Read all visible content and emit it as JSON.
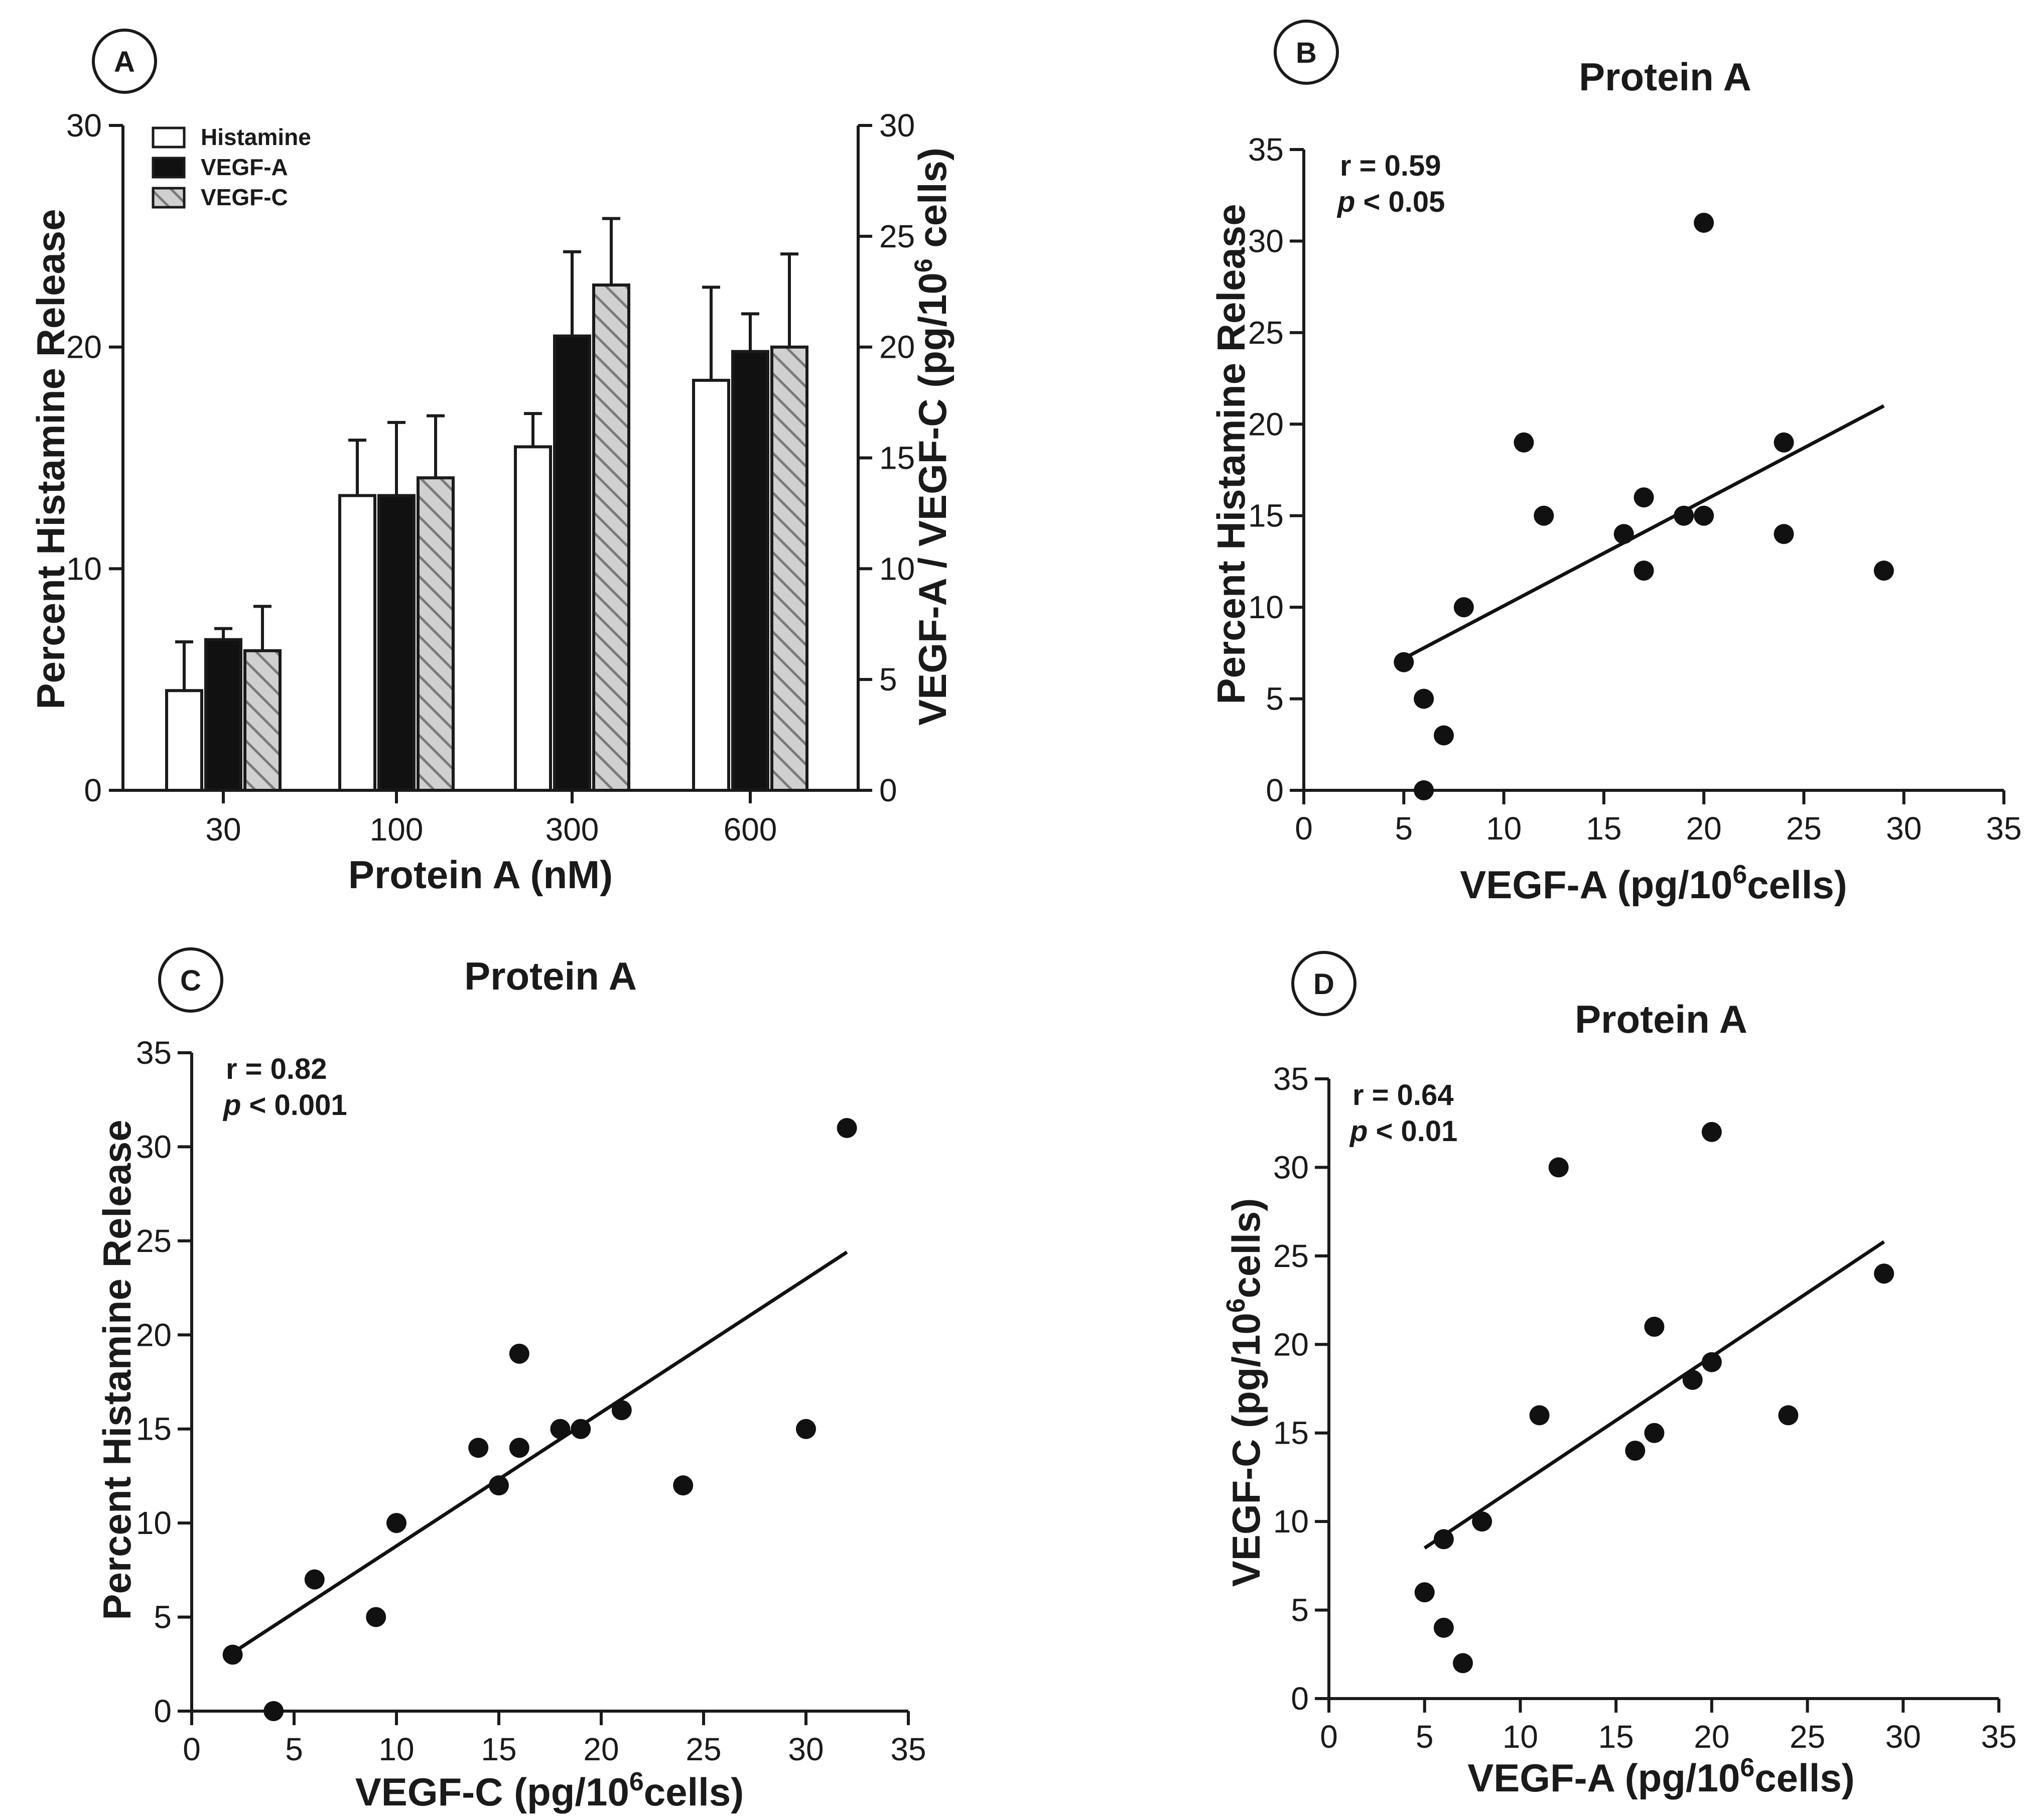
{
  "chart_data": [
    {
      "panel": "A",
      "type": "bar",
      "xlabel": "Protein A (nM)",
      "ylabel": "Percent  Histamine  Release",
      "ylabel_right": "VEGF-A / VEGF-C (pg/10",
      "ylabel_right_sup": "6",
      "ylabel_right_tail": " cells)",
      "ylim": [
        0,
        30
      ],
      "yticks": [
        0,
        10,
        20,
        30
      ],
      "ylim_right": [
        0,
        30
      ],
      "yticks_right": [
        0,
        5,
        10,
        15,
        20,
        25,
        30
      ],
      "categories": [
        "30",
        "100",
        "300",
        "600"
      ],
      "series": [
        {
          "name": "Histamine",
          "fill": "white",
          "values": [
            4.5,
            13.3,
            15.5,
            18.5
          ],
          "errors": [
            2.2,
            2.5,
            1.5,
            4.2
          ]
        },
        {
          "name": "VEGF-A",
          "fill": "black",
          "values": [
            6.8,
            13.3,
            20.5,
            19.8
          ],
          "errors": [
            0.5,
            3.3,
            3.8,
            1.7
          ]
        },
        {
          "name": "VEGF-C",
          "fill": "hatched",
          "values": [
            6.3,
            14.1,
            22.8,
            20.0
          ],
          "errors": [
            2.0,
            2.8,
            3.0,
            4.2
          ]
        }
      ]
    },
    {
      "panel": "B",
      "type": "scatter",
      "title": "Protein A",
      "xlabel": "VEGF-A (pg/10",
      "xlabel_sup": "6",
      "xlabel_tail": "cells)",
      "ylabel": "Percent Histamine Release",
      "xlim": [
        0,
        35
      ],
      "ylim": [
        0,
        35
      ],
      "xticks": [
        0,
        5,
        10,
        15,
        20,
        25,
        30,
        35
      ],
      "yticks": [
        0,
        5,
        10,
        15,
        20,
        25,
        30,
        35
      ],
      "r_text": "r = 0.59",
      "p_italic": "p",
      "p_text": " < 0.05",
      "points": [
        [
          5,
          7
        ],
        [
          6,
          5
        ],
        [
          6,
          0
        ],
        [
          7,
          3
        ],
        [
          8,
          10
        ],
        [
          11,
          19
        ],
        [
          12,
          15
        ],
        [
          16,
          14
        ],
        [
          17,
          16
        ],
        [
          17,
          12
        ],
        [
          19,
          15
        ],
        [
          20,
          15
        ],
        [
          20,
          31
        ],
        [
          24,
          19
        ],
        [
          24,
          14
        ],
        [
          29,
          12
        ]
      ],
      "fit_line": [
        [
          5,
          7.2
        ],
        [
          29,
          21.0
        ]
      ]
    },
    {
      "panel": "C",
      "type": "scatter",
      "title": "Protein A",
      "xlabel": "VEGF-C (pg/10",
      "xlabel_sup": "6",
      "xlabel_tail": "cells)",
      "ylabel": "Percent Histamine Release",
      "xlim": [
        0,
        35
      ],
      "ylim": [
        0,
        35
      ],
      "xticks": [
        0,
        5,
        10,
        15,
        20,
        25,
        30,
        35
      ],
      "yticks": [
        0,
        5,
        10,
        15,
        20,
        25,
        30,
        35
      ],
      "r_text": "r = 0.82",
      "p_italic": "p",
      "p_text": " < 0.001",
      "points": [
        [
          2,
          3
        ],
        [
          4,
          0
        ],
        [
          6,
          7
        ],
        [
          9,
          5
        ],
        [
          10,
          10
        ],
        [
          14,
          14
        ],
        [
          15,
          12
        ],
        [
          16,
          14
        ],
        [
          16,
          19
        ],
        [
          18,
          15
        ],
        [
          19,
          15
        ],
        [
          21,
          16
        ],
        [
          24,
          12
        ],
        [
          30,
          15
        ],
        [
          32,
          31
        ]
      ],
      "fit_line": [
        [
          2,
          3.1
        ],
        [
          32,
          24.4
        ]
      ]
    },
    {
      "panel": "D",
      "type": "scatter",
      "title": "Protein A",
      "xlabel": "VEGF-A (pg/10",
      "xlabel_sup": "6",
      "xlabel_tail": "cells)",
      "ylabel": "VEGF-C (pg/10",
      "ylabel_sup": "6",
      "ylabel_tail": "cells)",
      "xlim": [
        0,
        35
      ],
      "ylim": [
        0,
        35
      ],
      "xticks": [
        0,
        5,
        10,
        15,
        20,
        25,
        30,
        35
      ],
      "yticks": [
        0,
        5,
        10,
        15,
        20,
        25,
        30,
        35
      ],
      "r_text": "r = 0.64",
      "p_italic": "p",
      "p_text": " < 0.01",
      "points": [
        [
          5,
          6
        ],
        [
          6,
          4
        ],
        [
          6,
          9
        ],
        [
          7,
          2
        ],
        [
          8,
          10
        ],
        [
          11,
          16
        ],
        [
          12,
          30
        ],
        [
          16,
          14
        ],
        [
          17,
          15
        ],
        [
          17,
          21
        ],
        [
          19,
          18
        ],
        [
          20,
          19
        ],
        [
          20,
          32
        ],
        [
          24,
          16
        ],
        [
          29,
          24
        ]
      ],
      "fit_line": [
        [
          5,
          8.5
        ],
        [
          29,
          25.8
        ]
      ]
    }
  ]
}
